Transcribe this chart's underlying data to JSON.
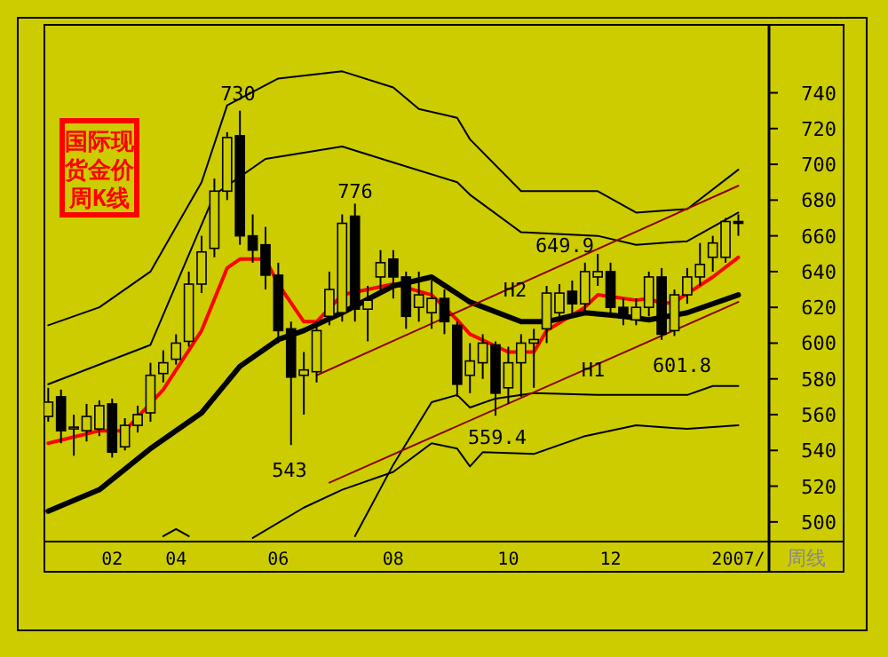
{
  "chart_data": {
    "type": "candlestick",
    "title": "国际现货金价周K线",
    "categories": [
      null,
      null,
      null,
      null,
      null,
      "02",
      null,
      null,
      null,
      null,
      "04",
      null,
      null,
      null,
      null,
      null,
      null,
      null,
      "06",
      null,
      null,
      null,
      null,
      null,
      null,
      null,
      null,
      "08",
      null,
      null,
      null,
      null,
      null,
      null,
      null,
      null,
      "10",
      null,
      null,
      null,
      null,
      null,
      null,
      null,
      "12",
      null,
      null,
      null,
      null,
      null,
      null,
      null,
      null,
      null,
      "2007/"
    ],
    "ohlc": [
      [
        559,
        575,
        556,
        567
      ],
      [
        570,
        574,
        544,
        551
      ],
      [
        552,
        560,
        537,
        553
      ],
      [
        551,
        566,
        545,
        559
      ],
      [
        552,
        568,
        548,
        565
      ],
      [
        566,
        569,
        536,
        539
      ],
      [
        542,
        558,
        540,
        554
      ],
      [
        554,
        565,
        550,
        560
      ],
      [
        561,
        589,
        556,
        582
      ],
      [
        583,
        596,
        578,
        589
      ],
      [
        591,
        605,
        588,
        600
      ],
      [
        601,
        640,
        598,
        633
      ],
      [
        633,
        660,
        628,
        651
      ],
      [
        653,
        692,
        648,
        685
      ],
      [
        685,
        718,
        680,
        715
      ],
      [
        716,
        730,
        655,
        660
      ],
      [
        660,
        672,
        645,
        652
      ],
      [
        655,
        665,
        630,
        638
      ],
      [
        638,
        645,
        600,
        607
      ],
      [
        608,
        612,
        543,
        581
      ],
      [
        582,
        595,
        560,
        585
      ],
      [
        584,
        612,
        578,
        607
      ],
      [
        615,
        640,
        610,
        630
      ],
      [
        617,
        672,
        612,
        667
      ],
      [
        671,
        678,
        612,
        619
      ],
      [
        619,
        632,
        601,
        624
      ],
      [
        637,
        652,
        630,
        645
      ],
      [
        647,
        652,
        625,
        637
      ],
      [
        637,
        640,
        608,
        615
      ],
      [
        620,
        640,
        612,
        627
      ],
      [
        617,
        635,
        608,
        625
      ],
      [
        625,
        630,
        605,
        612
      ],
      [
        610,
        612,
        570,
        577
      ],
      [
        582,
        600,
        572,
        590
      ],
      [
        589,
        605,
        580,
        600
      ],
      [
        599,
        601,
        559.4,
        572
      ],
      [
        575,
        598,
        566,
        589
      ],
      [
        589,
        605,
        570,
        600
      ],
      [
        600,
        608,
        575,
        602
      ],
      [
        608,
        632,
        600,
        628
      ],
      [
        617,
        633,
        612,
        628
      ],
      [
        629,
        635,
        615,
        622
      ],
      [
        622,
        645,
        618,
        640
      ],
      [
        637,
        649.9,
        632,
        640
      ],
      [
        640,
        645,
        615,
        620
      ],
      [
        620,
        625,
        610,
        614
      ],
      [
        613,
        625,
        610,
        620
      ],
      [
        620,
        640,
        615,
        637
      ],
      [
        637,
        642,
        601.8,
        605
      ],
      [
        607,
        630,
        604,
        627
      ],
      [
        627,
        642,
        622,
        637
      ],
      [
        637,
        656,
        632,
        644
      ],
      [
        648,
        660,
        640,
        656
      ],
      [
        648,
        670,
        645,
        668
      ],
      [
        668,
        672,
        660,
        667
      ]
    ],
    "series": [
      {
        "type": "line",
        "color": "#ff0000",
        "values": [
          544,
          null,
          null,
          null,
          551,
          null,
          551,
          null,
          null,
          574,
          null,
          null,
          607,
          null,
          642,
          647,
          null,
          647,
          633,
          null,
          612,
          612,
          null,
          627,
          null,
          null,
          null,
          633,
          null,
          null,
          627,
          null,
          613,
          605,
          null,
          null,
          595,
          null,
          595,
          607,
          null,
          null,
          620,
          627,
          null,
          null,
          624,
          625,
          622,
          623,
          null,
          null,
          637,
          null,
          648
        ]
      },
      {
        "type": "line",
        "color": "#000000",
        "values": [
          506,
          null,
          null,
          null,
          518,
          null,
          null,
          null,
          541,
          null,
          null,
          null,
          561,
          null,
          null,
          587,
          null,
          null,
          602,
          null,
          607,
          null,
          null,
          617,
          null,
          null,
          null,
          632,
          null,
          null,
          637,
          null,
          null,
          623,
          null,
          null,
          null,
          612,
          null,
          612,
          null,
          null,
          617,
          null,
          null,
          615,
          null,
          613,
          null,
          null,
          617,
          null,
          null,
          null,
          627
        ]
      },
      {
        "type": "line",
        "color": "#000000",
        "values": [
          610,
          null,
          null,
          null,
          620,
          null,
          null,
          null,
          640,
          null,
          null,
          null,
          690,
          null,
          733,
          null,
          null,
          null,
          748,
          null,
          null,
          null,
          null,
          752,
          null,
          null,
          null,
          743,
          null,
          731,
          null,
          null,
          726,
          714,
          null,
          null,
          null,
          685,
          null,
          null,
          null,
          null,
          null,
          685,
          null,
          null,
          673,
          null,
          null,
          null,
          675,
          null,
          null,
          null,
          697
        ]
      },
      {
        "type": "line",
        "color": "#000000",
        "values": [
          577,
          null,
          null,
          null,
          null,
          null,
          null,
          null,
          599,
          null,
          null,
          null,
          null,
          683,
          null,
          null,
          null,
          703,
          null,
          null,
          null,
          null,
          null,
          710,
          null,
          null,
          null,
          701,
          null,
          null,
          null,
          null,
          690,
          683,
          null,
          null,
          null,
          662,
          null,
          null,
          null,
          null,
          null,
          660,
          null,
          null,
          655,
          null,
          null,
          null,
          657,
          null,
          null,
          null,
          673
        ]
      },
      {
        "type": "line",
        "color": "#000000",
        "values": [
          null,
          null,
          null,
          null,
          null,
          null,
          null,
          null,
          null,
          null,
          null,
          null,
          null,
          null,
          null,
          null,
          null,
          null,
          null,
          null,
          null,
          null,
          null,
          null,
          492,
          null,
          null,
          532,
          null,
          null,
          567,
          null,
          571,
          564,
          null,
          569,
          null,
          null,
          572,
          null,
          null,
          null,
          null,
          571,
          null,
          null,
          null,
          null,
          null,
          null,
          571,
          null,
          576,
          null,
          576
        ]
      },
      {
        "type": "line",
        "color": "#000000",
        "values": [
          null,
          null,
          null,
          null,
          null,
          null,
          null,
          null,
          null,
          null,
          null,
          null,
          null,
          null,
          null,
          null,
          491,
          null,
          null,
          null,
          508,
          null,
          null,
          518,
          null,
          null,
          null,
          528,
          null,
          null,
          544,
          null,
          541,
          531,
          539,
          null,
          null,
          null,
          538,
          null,
          null,
          null,
          548,
          null,
          null,
          null,
          554,
          null,
          null,
          null,
          552,
          null,
          null,
          null,
          554
        ]
      },
      {
        "type": "line",
        "color": "#000000",
        "values": [
          null,
          null,
          null,
          null,
          null,
          null,
          null,
          null,
          null,
          492,
          496,
          492,
          null,
          null,
          null,
          null,
          null,
          null,
          null,
          null,
          null,
          null,
          null,
          null,
          null,
          null,
          null,
          null,
          null,
          null,
          null,
          null,
          null,
          null,
          null,
          null,
          null,
          null,
          null,
          null,
          null,
          null,
          null,
          null,
          null,
          null,
          null,
          null,
          null,
          null,
          null,
          null,
          null,
          null,
          null
        ]
      },
      {
        "type": "line",
        "name": "H2",
        "color": "#8b0000",
        "values": [
          null,
          null,
          null,
          null,
          null,
          null,
          null,
          null,
          null,
          null,
          null,
          null,
          null,
          null,
          null,
          null,
          null,
          null,
          null,
          null,
          null,
          582,
          null,
          null,
          null,
          null,
          null,
          null,
          null,
          null,
          null,
          null,
          null,
          null,
          null,
          null,
          null,
          null,
          null,
          null,
          null,
          null,
          null,
          null,
          null,
          null,
          null,
          null,
          null,
          null,
          null,
          null,
          null,
          null,
          688
        ]
      },
      {
        "type": "line",
        "name": "H1",
        "color": "#8b0000",
        "values": [
          null,
          null,
          null,
          null,
          null,
          null,
          null,
          null,
          null,
          null,
          null,
          null,
          null,
          null,
          null,
          null,
          null,
          null,
          null,
          null,
          null,
          null,
          522,
          null,
          null,
          null,
          null,
          null,
          null,
          null,
          null,
          null,
          null,
          null,
          null,
          null,
          null,
          null,
          null,
          null,
          null,
          null,
          null,
          null,
          null,
          null,
          null,
          null,
          null,
          null,
          null,
          null,
          null,
          null,
          623
        ]
      }
    ],
    "ylim": [
      489,
      778
    ],
    "yticks": [
      500,
      520,
      540,
      560,
      580,
      600,
      620,
      640,
      660,
      680,
      700,
      720,
      740
    ],
    "annotations": [
      {
        "text": "730",
        "y": 730
      },
      {
        "text": "776",
        "y": 678
      },
      {
        "text": "543",
        "y": 543
      },
      {
        "text": "559.4",
        "y": 559.4
      },
      {
        "text": "649.9",
        "y": 649.9
      },
      {
        "text": "601.8",
        "y": 601.8
      },
      "周线"
    ],
    "grid": false
  }
}
